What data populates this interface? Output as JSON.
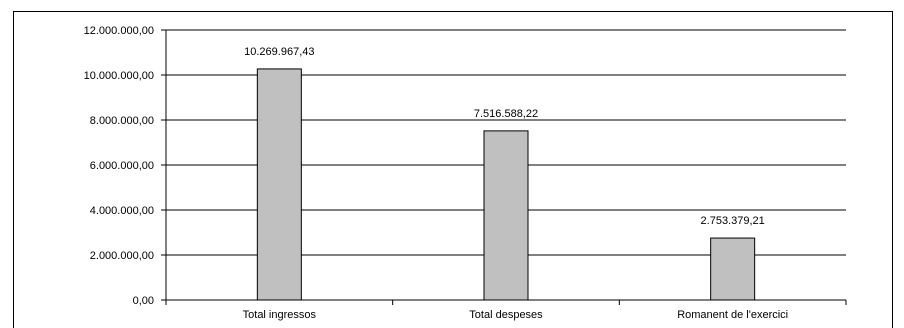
{
  "chart_data": {
    "type": "bar",
    "categories": [
      "Total ingressos",
      "Total despeses",
      "Romanent de l'exercici"
    ],
    "values": [
      10269967.43,
      7516588.22,
      2753379.21
    ],
    "value_labels": [
      "10.269.967,43",
      "7.516.588,22",
      "2.753.379,21"
    ],
    "title": "",
    "xlabel": "",
    "ylabel": "",
    "ylim": [
      0,
      12000000
    ],
    "yticks": [
      0,
      2000000,
      4000000,
      6000000,
      8000000,
      10000000,
      12000000
    ],
    "ytick_labels": [
      "0,00",
      "2.000.000,00",
      "4.000.000,00",
      "6.000.000,00",
      "8.000.000,00",
      "10.000.000,00",
      "12.000.000,00"
    ],
    "grid": true,
    "legend": "none",
    "colors": {
      "bar_fill": "#c0c0c0",
      "bar_stroke": "#000000",
      "grid": "#000000"
    }
  }
}
